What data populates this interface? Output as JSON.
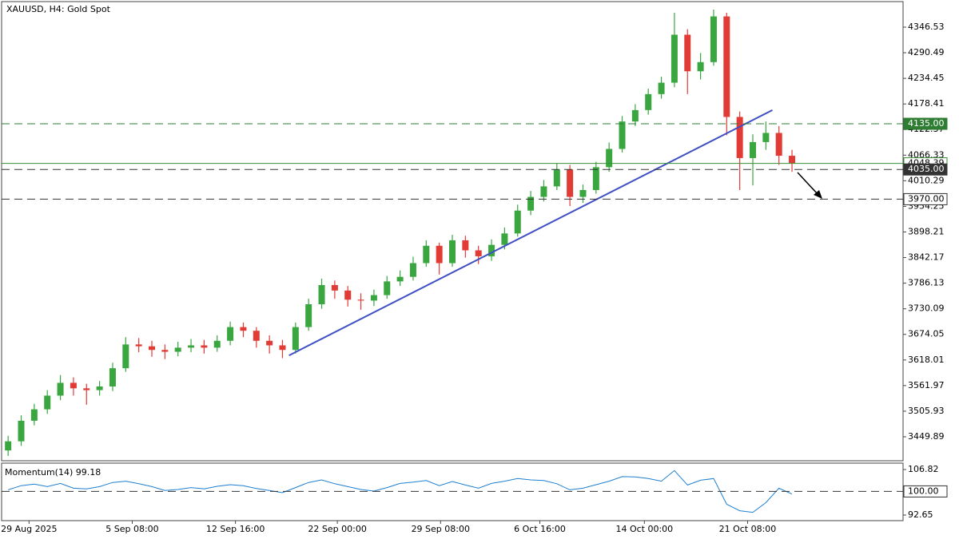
{
  "chart_data": [
    {
      "type": "candlestick",
      "title": "XAUUSD, H4:  Gold Spot",
      "series": [
        {
          "name": "XAUUSD",
          "up_color": "#3aa63f",
          "down_color": "#e23b35",
          "open": [
            3420,
            3440,
            3485,
            3510,
            3540,
            3568,
            3556,
            3552,
            3560,
            3600,
            3652,
            3648,
            3640,
            3636,
            3645,
            3650,
            3645,
            3660,
            3690,
            3682,
            3660,
            3650,
            3640,
            3690,
            3740,
            3782,
            3770,
            3750,
            3748,
            3760,
            3790,
            3800,
            3830,
            3868,
            3830,
            3880,
            3858,
            3845,
            3870,
            3895,
            3945,
            3975,
            3998,
            4035,
            3975,
            3990,
            4040,
            4080,
            4140,
            4165,
            4200,
            4225,
            4330,
            4250,
            4270,
            4370,
            4150,
            4060,
            4095,
            4115,
            4065
          ],
          "high": [
            3452,
            3497,
            3522,
            3552,
            3585,
            3580,
            3566,
            3572,
            3612,
            3668,
            3666,
            3660,
            3652,
            3658,
            3664,
            3662,
            3672,
            3702,
            3700,
            3690,
            3672,
            3662,
            3700,
            3752,
            3796,
            3792,
            3780,
            3764,
            3772,
            3802,
            3814,
            3844,
            3880,
            3875,
            3892,
            3890,
            3868,
            3882,
            3908,
            3958,
            3988,
            4012,
            4048,
            4045,
            4002,
            4052,
            4094,
            4152,
            4178,
            4212,
            4238,
            4378,
            4342,
            4290,
            4385,
            4378,
            4162,
            4112,
            4140,
            4130,
            4078
          ],
          "low": [
            3408,
            3430,
            3475,
            3500,
            3530,
            3540,
            3520,
            3540,
            3550,
            3592,
            3635,
            3625,
            3620,
            3626,
            3635,
            3632,
            3636,
            3650,
            3668,
            3645,
            3632,
            3622,
            3632,
            3682,
            3730,
            3752,
            3735,
            3728,
            3736,
            3752,
            3780,
            3792,
            3822,
            3805,
            3822,
            3842,
            3828,
            3835,
            3860,
            3888,
            3935,
            3965,
            3990,
            3955,
            3962,
            3982,
            4030,
            4072,
            4130,
            4155,
            4190,
            4215,
            4200,
            4232,
            4262,
            4110,
            3990,
            4000,
            4078,
            4045,
            4030
          ],
          "close": [
            3440,
            3485,
            3510,
            3540,
            3568,
            3556,
            3552,
            3560,
            3600,
            3652,
            3648,
            3640,
            3636,
            3645,
            3650,
            3645,
            3660,
            3690,
            3682,
            3660,
            3650,
            3640,
            3690,
            3740,
            3782,
            3770,
            3750,
            3748,
            3760,
            3790,
            3800,
            3830,
            3868,
            3830,
            3880,
            3858,
            3845,
            3870,
            3895,
            3945,
            3975,
            3998,
            4035,
            3975,
            3990,
            4040,
            4080,
            4140,
            4165,
            4200,
            4225,
            4330,
            4250,
            4270,
            4370,
            4150,
            4060,
            4095,
            4115,
            4065,
            4048
          ]
        }
      ],
      "xlim": [
        -0.5,
        68.5
      ],
      "ylim": [
        3397.45,
        4402.46
      ],
      "yticks": [
        3449.89,
        3505.93,
        3561.97,
        3618.01,
        3674.05,
        3730.09,
        3786.13,
        3842.17,
        3898.21,
        3954.25,
        4010.29,
        4066.33,
        4122.37,
        4178.41,
        4234.45,
        4290.49,
        4346.53
      ],
      "trendline": {
        "x": [
          21.5,
          58.5
        ],
        "y": [
          3628,
          4165
        ],
        "color": "#3f4fc4"
      },
      "current_price": {
        "value": 4048.39,
        "label": "4048.39",
        "color": "#3a8f3a"
      },
      "levels": [
        {
          "value": 4135,
          "label": "4135.00",
          "color": "#2e7d32",
          "label_fill": "#2e7d32",
          "label_text": "#ffffff"
        },
        {
          "value": 4035,
          "label": "4035.00",
          "color": "#333333",
          "label_fill": "#333333",
          "label_text": "#ffffff"
        },
        {
          "value": 3970,
          "label": "3970.00",
          "color": "#333333",
          "label_fill": "#ffffff",
          "label_text": "#000000"
        }
      ]
    },
    {
      "type": "line",
      "title": "Momentum(14) 99.18",
      "color": "#1e7fd0",
      "values": [
        100.5,
        101.8,
        102.3,
        101.5,
        102.5,
        101,
        100.8,
        101.5,
        102.8,
        103.2,
        102.4,
        101.5,
        100.3,
        100.6,
        101.2,
        100.8,
        101.6,
        102.1,
        101.8,
        100.9,
        100.3,
        99.6,
        101.2,
        102.8,
        103.6,
        102.4,
        101.5,
        100.6,
        100.1,
        101.2,
        102.5,
        102.9,
        103.4,
        101.8,
        103.1,
        102,
        101,
        102.5,
        103.2,
        104,
        103.6,
        103.4,
        102.4,
        100.5,
        101,
        102.1,
        103.2,
        104.6,
        104.5,
        104,
        103.2,
        106.5,
        102,
        103.5,
        104,
        96,
        94,
        93.5,
        96.5,
        101,
        99.18
      ],
      "xlim": [
        -0.5,
        68.5
      ],
      "ylim": [
        90.91,
        108.81
      ],
      "yticks": [
        106.82,
        92.65
      ],
      "levels": [
        {
          "value": 100,
          "label": "100.00",
          "color": "#333333",
          "label_fill": "#ffffff",
          "label_text": "#000000"
        }
      ],
      "xticks": [
        {
          "value": 1.6,
          "label": "29 Aug 2025"
        },
        {
          "value": 9.5,
          "label": "5 Sep 08:00"
        },
        {
          "value": 17.4,
          "label": "12 Sep 16:00"
        },
        {
          "value": 25.2,
          "label": "22 Sep 00:00"
        },
        {
          "value": 33.1,
          "label": "29 Sep 08:00"
        },
        {
          "value": 40.7,
          "label": "6 Oct 16:00"
        },
        {
          "value": 48.7,
          "label": "14 Oct 00:00"
        },
        {
          "value": 56.6,
          "label": "21 Oct 08:00"
        }
      ]
    }
  ]
}
